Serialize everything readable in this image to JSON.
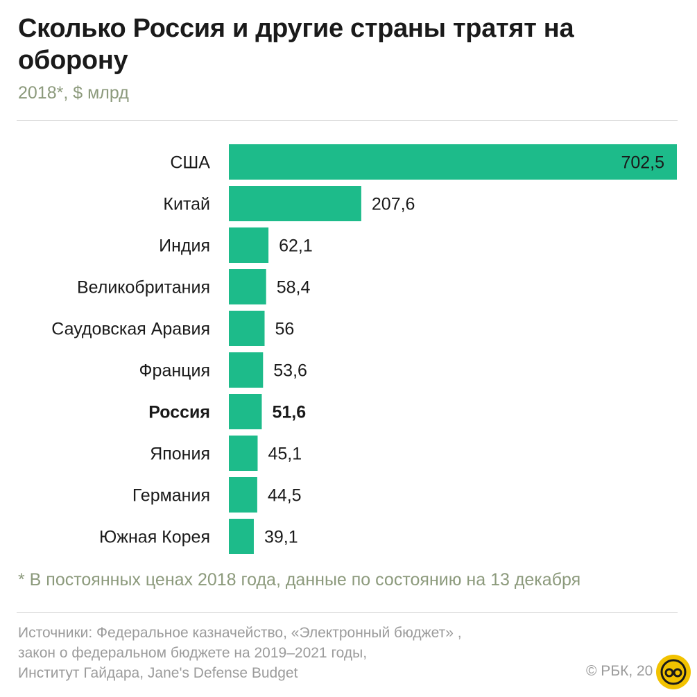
{
  "header": {
    "title": "Сколько Россия и другие страны тратят на оборону",
    "subtitle": "2018*, $ млрд"
  },
  "footer": {
    "footnote": "* В постоянных ценах 2018 года, данные по состоянию на 13 декабря",
    "sources": [
      "Источники: Федеральное казначейство, «Электронный бюджет» ,",
      "закон о федеральном бюджете на 2019–2021 годы,",
      "Институт Гайдара, Jane's Defense Budget"
    ],
    "copyright": "© РБК, 20"
  },
  "colors": {
    "bar": "#1dbb8a",
    "subtitle": "#8c9a7c",
    "badge": "#f2c200"
  },
  "chart_data": {
    "type": "bar",
    "orientation": "horizontal",
    "categories": [
      "США",
      "Китай",
      "Индия",
      "Великобритания",
      "Саудовская Аравия",
      "Франция",
      "Россия",
      "Япония",
      "Германия",
      "Южная Корея"
    ],
    "values": [
      702.5,
      207.6,
      62.1,
      58.4,
      56,
      53.6,
      51.6,
      45.1,
      44.5,
      39.1
    ],
    "value_labels": [
      "702,5",
      "207,6",
      "62,1",
      "58,4",
      "56",
      "53,6",
      "51,6",
      "45,1",
      "44,5",
      "39,1"
    ],
    "highlighted_category": "Россия",
    "xlim": [
      0,
      702.5
    ],
    "grid": false,
    "legend": "none"
  }
}
